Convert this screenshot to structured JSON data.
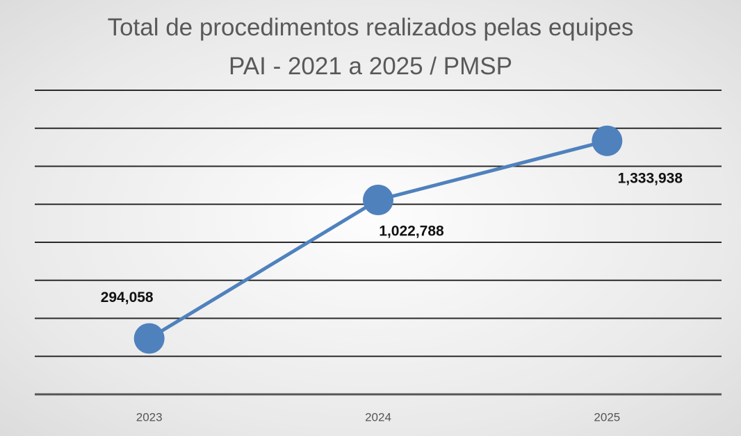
{
  "chart_data": {
    "type": "line",
    "title": "Total de procedimentos realizados pelas equipes PAI - 2021 a 2025 / PMSP",
    "categories": [
      "2023",
      "2024",
      "2025"
    ],
    "series": [
      {
        "name": "Total de procedimentos",
        "color": "#4f81bd",
        "values": [
          294058,
          1022788,
          1333938
        ],
        "value_labels": [
          "294,058",
          "1,022,788",
          "1,333,938"
        ]
      }
    ],
    "ylim": [
      0,
      1600000
    ],
    "yticks": [
      0,
      200000,
      400000,
      600000,
      800000,
      1000000,
      1200000,
      1400000,
      1600000
    ],
    "grid": true
  }
}
